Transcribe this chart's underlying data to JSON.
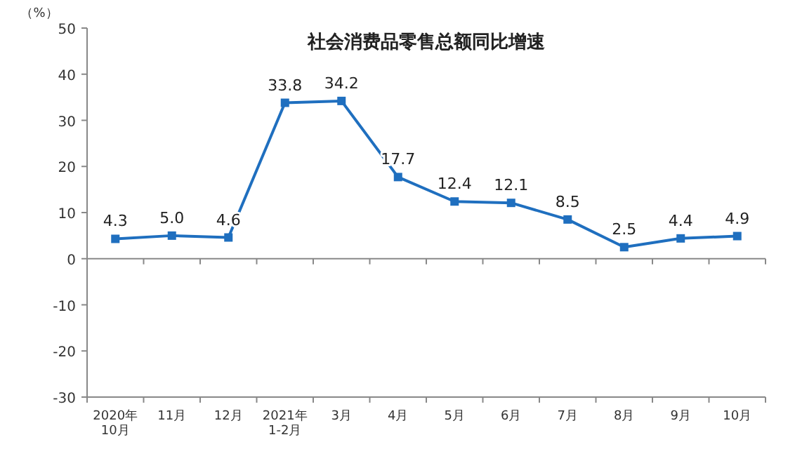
{
  "chart_data": {
    "type": "line",
    "title": "社会消费品零售总额同比增速",
    "ylabel": "（%）",
    "categories": [
      "2020年\n10月",
      "11月",
      "12月",
      "2021年\n1-2月",
      "3月",
      "4月",
      "5月",
      "6月",
      "7月",
      "8月",
      "9月",
      "10月"
    ],
    "series": [
      {
        "color": "#1f6fbf",
        "values": [
          4.3,
          5.0,
          4.6,
          33.8,
          34.2,
          17.7,
          12.4,
          12.1,
          8.5,
          2.5,
          4.4,
          4.9
        ],
        "value_labels": [
          "4.3",
          "5.0",
          "4.6",
          "33.8",
          "34.2",
          "17.7",
          "12.4",
          "12.1",
          "8.5",
          "2.5",
          "4.4",
          "4.9"
        ]
      }
    ],
    "ylim": [
      -30,
      50
    ],
    "yticks": [
      -30,
      -20,
      -10,
      0,
      10,
      20,
      30,
      40,
      50
    ],
    "marker": "square",
    "line_style": "solid"
  }
}
